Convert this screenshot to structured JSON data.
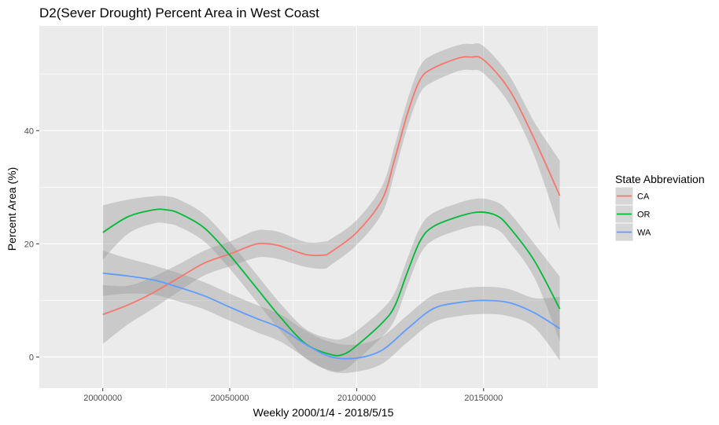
{
  "chart_data": {
    "type": "line",
    "title": "D2(Sever Drought) Percent Area in West Coast",
    "xlabel": "Weekly 2000/1/4 - 2018/5/15",
    "ylabel": "Percent Area (%)",
    "xlim": [
      19975000,
      20195000
    ],
    "ylim": [
      -5.5,
      58.5
    ],
    "x_ticks": [
      20000000,
      20050000,
      20100000,
      20150000
    ],
    "x_tick_labels": [
      "20000000",
      "20050000",
      "20100000",
      "20150000"
    ],
    "y_ticks": [
      0,
      20,
      40
    ],
    "y_tick_labels": [
      "0",
      "20",
      "40"
    ],
    "grid": true,
    "legend": {
      "title": "State Abbreviation",
      "position": "right"
    },
    "series": [
      {
        "name": "CA",
        "color": "#F8766D",
        "x": [
          20000000,
          20010000,
          20020000,
          20030000,
          20040000,
          20050000,
          20060000,
          20065000,
          20070000,
          20080000,
          20087000,
          20090000,
          20100000,
          20110000,
          20115000,
          20120000,
          20125000,
          20130000,
          20140000,
          20145000,
          20150000,
          20160000,
          20170000,
          20180000
        ],
        "y": [
          7.5,
          9.2,
          11.4,
          14.0,
          16.6,
          18.2,
          19.9,
          20.0,
          19.6,
          18.1,
          18.0,
          18.6,
          22.0,
          27.8,
          35.0,
          43.0,
          49.0,
          51.0,
          52.8,
          53.0,
          52.5,
          47.3,
          38.5,
          28.5
        ],
        "ci": [
          [
            2.3,
            12.7
          ],
          [
            5.8,
            12.6
          ],
          [
            8.6,
            14.2
          ],
          [
            11.6,
            16.4
          ],
          [
            14.4,
            18.8
          ],
          [
            16.0,
            20.4
          ],
          [
            17.5,
            22.3
          ],
          [
            17.6,
            22.4
          ],
          [
            17.2,
            22.0
          ],
          [
            15.9,
            20.3
          ],
          [
            15.6,
            20.4
          ],
          [
            16.3,
            20.9
          ],
          [
            19.8,
            24.2
          ],
          [
            25.4,
            30.2
          ],
          [
            32.6,
            37.4
          ],
          [
            40.6,
            45.4
          ],
          [
            46.6,
            51.4
          ],
          [
            48.6,
            53.4
          ],
          [
            50.5,
            55.1
          ],
          [
            50.7,
            55.3
          ],
          [
            50.1,
            54.9
          ],
          [
            44.8,
            49.8
          ],
          [
            35.5,
            41.5
          ],
          [
            22.3,
            34.7
          ]
        ]
      },
      {
        "name": "OR",
        "color": "#00BA38",
        "x": [
          20000000,
          20010000,
          20020000,
          20025000,
          20030000,
          20040000,
          20050000,
          20060000,
          20070000,
          20080000,
          20090000,
          20095000,
          20100000,
          20110000,
          20115000,
          20120000,
          20125000,
          20130000,
          20140000,
          20148000,
          20155000,
          20160000,
          20170000,
          20180000
        ],
        "y": [
          22.0,
          24.8,
          26.0,
          26.0,
          25.4,
          22.8,
          18.0,
          12.5,
          7.0,
          2.3,
          0.4,
          0.5,
          2.0,
          6.0,
          9.0,
          15.0,
          20.5,
          23.0,
          24.8,
          25.6,
          25.0,
          23.0,
          17.0,
          8.5
        ],
        "ci": [
          [
            17.2,
            26.8
          ],
          [
            21.8,
            27.8
          ],
          [
            23.6,
            28.4
          ],
          [
            23.6,
            28.4
          ],
          [
            23.0,
            27.8
          ],
          [
            20.4,
            25.2
          ],
          [
            15.6,
            20.4
          ],
          [
            10.1,
            14.9
          ],
          [
            4.6,
            9.4
          ],
          [
            -0.3,
            4.9
          ],
          [
            -2.4,
            3.2
          ],
          [
            -2.3,
            3.3
          ],
          [
            -0.6,
            4.6
          ],
          [
            3.6,
            8.4
          ],
          [
            6.6,
            11.4
          ],
          [
            12.6,
            17.4
          ],
          [
            18.1,
            22.9
          ],
          [
            20.6,
            25.4
          ],
          [
            22.4,
            27.2
          ],
          [
            23.2,
            28.0
          ],
          [
            22.6,
            27.4
          ],
          [
            20.4,
            25.6
          ],
          [
            14.0,
            20.0
          ],
          [
            2.8,
            14.2
          ]
        ]
      },
      {
        "name": "WA",
        "color": "#619CFF",
        "x": [
          20000000,
          20010000,
          20020000,
          20030000,
          20040000,
          20050000,
          20060000,
          20070000,
          20080000,
          20090000,
          20100000,
          20110000,
          20120000,
          20130000,
          20140000,
          20150000,
          20160000,
          20170000,
          20180000
        ],
        "y": [
          14.8,
          14.3,
          13.6,
          12.3,
          10.8,
          8.8,
          6.9,
          5.1,
          2.2,
          0.0,
          -0.2,
          1.2,
          5.0,
          8.5,
          9.6,
          10.0,
          9.6,
          7.8,
          5.0
        ],
        "ci": [
          [
            10.8,
            18.8
          ],
          [
            11.2,
            17.4
          ],
          [
            11.0,
            16.2
          ],
          [
            9.8,
            14.8
          ],
          [
            8.4,
            13.2
          ],
          [
            6.4,
            11.2
          ],
          [
            4.5,
            9.3
          ],
          [
            2.7,
            7.5
          ],
          [
            -0.2,
            4.6
          ],
          [
            -2.6,
            2.6
          ],
          [
            -2.6,
            2.2
          ],
          [
            -1.2,
            3.6
          ],
          [
            2.6,
            7.4
          ],
          [
            6.1,
            10.9
          ],
          [
            7.2,
            12.0
          ],
          [
            7.6,
            12.4
          ],
          [
            7.2,
            12.0
          ],
          [
            5.2,
            10.4
          ],
          [
            -0.6,
            10.6
          ]
        ]
      }
    ]
  }
}
